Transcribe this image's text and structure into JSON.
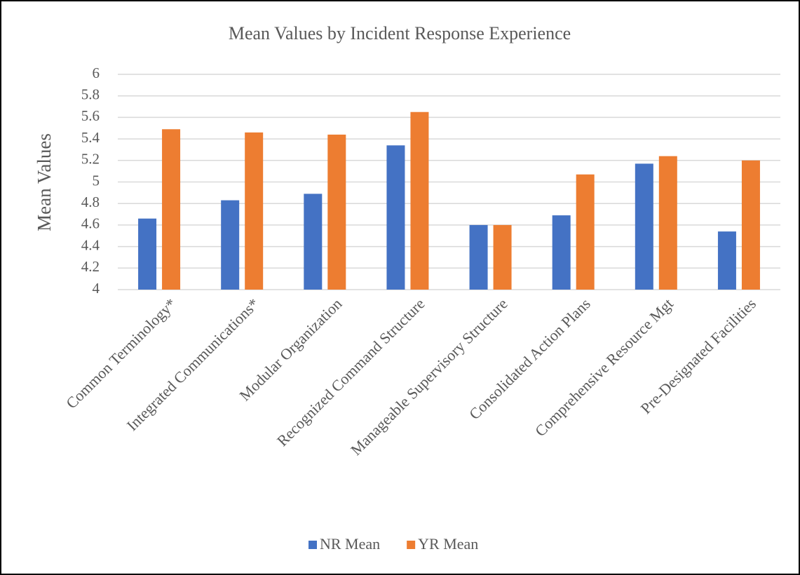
{
  "chart_data": {
    "type": "bar",
    "title": "Mean Values by Incident Response Experience",
    "y_label": "Mean Values",
    "categories": [
      "Common Terminology*",
      "Integrated Communications*",
      "Modular Organization",
      "Recognized Command Structure",
      "Manageable Supervisory Structure",
      "Consolidated Action Plans",
      "Comprehensive Resource Mgt",
      "Pre-Designated Facilities"
    ],
    "series": [
      {
        "name": "NR Mean",
        "color": "#4472c4",
        "values": [
          4.66,
          4.83,
          4.89,
          5.34,
          4.6,
          4.69,
          5.17,
          4.54
        ]
      },
      {
        "name": "YR Mean",
        "color": "#ed7d31",
        "values": [
          5.49,
          5.46,
          5.44,
          5.65,
          4.6,
          5.07,
          5.24,
          5.2
        ]
      }
    ],
    "ylim": [
      4,
      6
    ],
    "yticks": [
      4,
      4.2,
      4.4,
      4.6,
      4.8,
      5,
      5.2,
      5.4,
      5.6,
      5.8,
      6
    ],
    "grid": true,
    "legend": "bottom"
  }
}
